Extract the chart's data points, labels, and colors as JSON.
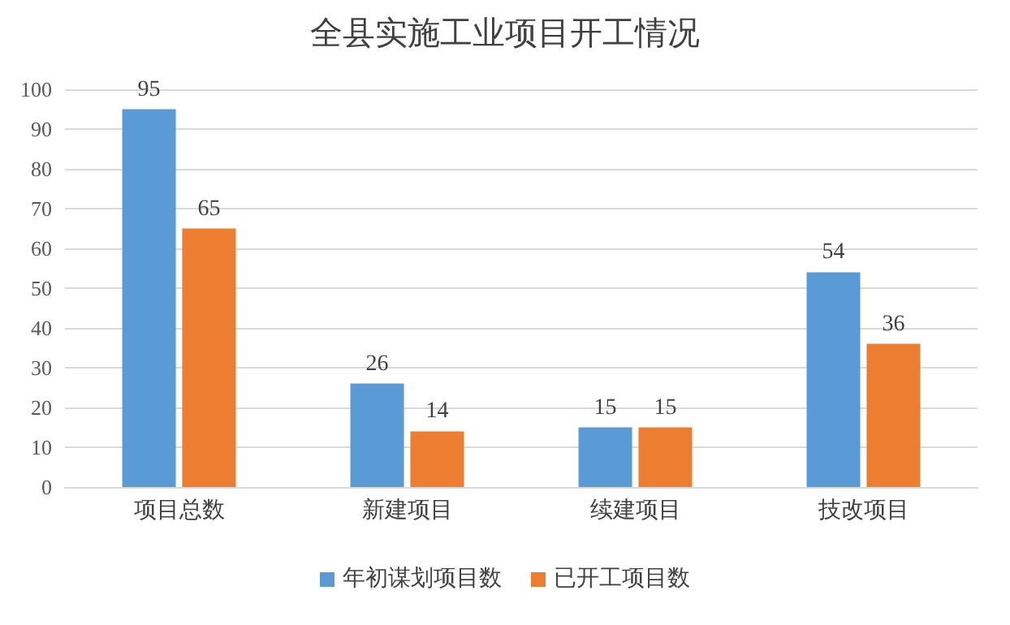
{
  "chart_data": {
    "type": "bar",
    "title": "全县实施工业项目开工情况",
    "categories": [
      "项目总数",
      "新建项目",
      "续建项目",
      "技改项目"
    ],
    "series": [
      {
        "name": "年初谋划项目数",
        "color": "#5b9bd5",
        "values": [
          95,
          26,
          15,
          54
        ]
      },
      {
        "name": "已开工项目数",
        "color": "#ed7d31",
        "values": [
          65,
          14,
          15,
          36
        ]
      }
    ],
    "ylim": [
      0,
      100
    ],
    "yticks": [
      0,
      10,
      20,
      30,
      40,
      50,
      60,
      70,
      80,
      90,
      100
    ],
    "grid": "y",
    "legend": "bottom",
    "data_labels": true
  }
}
